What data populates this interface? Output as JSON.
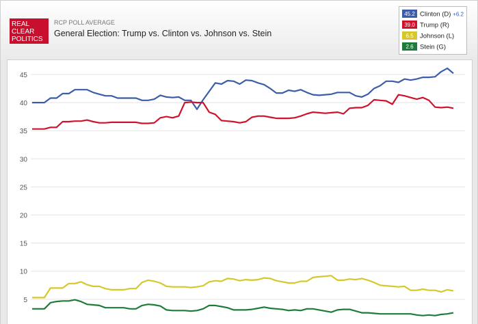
{
  "chart_data": {
    "type": "line",
    "logo": [
      "REAL",
      "CLEAR",
      "POLITICS"
    ],
    "subtitle": "RCP POLL AVERAGE",
    "title": "General Election: Trump vs. Clinton vs. Johnson vs. Stein",
    "spread_label": "+6.2",
    "ylim": [
      0.6,
      46.7
    ],
    "yticks": [
      5,
      10,
      15,
      20,
      25,
      30,
      35,
      40,
      45
    ],
    "grid": true,
    "legend": "top-right",
    "series": [
      {
        "name": "Clinton (D)",
        "color": "#3b5ca8",
        "current": "45.2",
        "values": [
          40,
          40,
          40,
          40.8,
          40.8,
          41.6,
          41.6,
          42.3,
          42.3,
          42.3,
          41.8,
          41.5,
          41.2,
          41.2,
          40.8,
          40.8,
          40.8,
          40.8,
          40.4,
          40.4,
          40.6,
          41.3,
          41,
          40.9,
          41,
          40.4,
          40.4,
          38.8,
          40.5,
          42,
          43.5,
          43.3,
          43.9,
          43.8,
          43.3,
          44,
          43.9,
          43.5,
          43.2,
          42.5,
          41.7,
          41.7,
          42.2,
          42,
          42.3,
          41.8,
          41.4,
          41.3,
          41.4,
          41.5,
          41.8,
          41.8,
          41.8,
          41.2,
          41,
          41.5,
          42.5,
          43,
          43.8,
          43.8,
          43.6,
          44.2,
          44,
          44.2,
          44.5,
          44.5,
          44.6,
          45.5,
          46.1,
          45.2
        ]
      },
      {
        "name": "Trump (R)",
        "color": "#d0112b",
        "current": "39.0",
        "values": [
          35.3,
          35.3,
          35.3,
          35.6,
          35.6,
          36.6,
          36.6,
          36.7,
          36.7,
          36.9,
          36.6,
          36.4,
          36.4,
          36.5,
          36.5,
          36.5,
          36.5,
          36.5,
          36.3,
          36.3,
          36.4,
          37.3,
          37.5,
          37.3,
          37.6,
          40,
          40.1,
          40,
          40,
          38.3,
          37.9,
          36.8,
          36.7,
          36.6,
          36.4,
          36.6,
          37.4,
          37.6,
          37.6,
          37.4,
          37.2,
          37.2,
          37.2,
          37.3,
          37.6,
          38,
          38.3,
          38.2,
          38.1,
          38.2,
          38.3,
          38,
          39,
          39.1,
          39.1,
          39.5,
          40.5,
          40.4,
          40.3,
          39.7,
          41.4,
          41.2,
          40.9,
          40.6,
          40.9,
          40.4,
          39.2,
          39.1,
          39.2,
          39.0
        ]
      },
      {
        "name": "Johnson (L)",
        "color": "#d6c82a",
        "current": "6.5",
        "values": [
          5.3,
          5.3,
          5.3,
          7,
          7,
          7,
          7.8,
          7.8,
          8.1,
          7.6,
          7.3,
          7.3,
          6.9,
          6.7,
          6.7,
          6.7,
          6.9,
          6.9,
          8,
          8.4,
          8.2,
          7.9,
          7.3,
          7.2,
          7.2,
          7.2,
          7.1,
          7.2,
          7.4,
          8.1,
          8.3,
          8.2,
          8.7,
          8.6,
          8.3,
          8.5,
          8.4,
          8.5,
          8.8,
          8.7,
          8.3,
          8.1,
          7.9,
          7.9,
          8.2,
          8.2,
          8.9,
          9,
          9.1,
          9.2,
          8.4,
          8.4,
          8.6,
          8.5,
          8.7,
          8.4,
          8,
          7.5,
          7.4,
          7.3,
          7.2,
          7.3,
          6.6,
          6.6,
          6.8,
          6.6,
          6.6,
          6.3,
          6.7,
          6.5
        ]
      },
      {
        "name": "Stein (G)",
        "color": "#1e7b3a",
        "current": "2.6",
        "values": [
          3.3,
          3.3,
          3.3,
          4.4,
          4.6,
          4.7,
          4.7,
          4.9,
          4.6,
          4.1,
          4,
          3.9,
          3.5,
          3.5,
          3.5,
          3.5,
          3.3,
          3.3,
          3.9,
          4.1,
          4,
          3.8,
          3.1,
          3,
          3,
          3,
          2.9,
          3,
          3.3,
          3.9,
          3.9,
          3.7,
          3.5,
          3.1,
          3.1,
          3.1,
          3.2,
          3.4,
          3.6,
          3.4,
          3.3,
          3.2,
          3,
          3.1,
          3,
          3.3,
          3.3,
          3.1,
          2.9,
          2.7,
          3.1,
          3.2,
          3.2,
          2.9,
          2.6,
          2.6,
          2.5,
          2.4,
          2.4,
          2.4,
          2.4,
          2.4,
          2.4,
          2.2,
          2.1,
          2.2,
          2.1,
          2.3,
          2.4,
          2.6
        ]
      }
    ]
  }
}
